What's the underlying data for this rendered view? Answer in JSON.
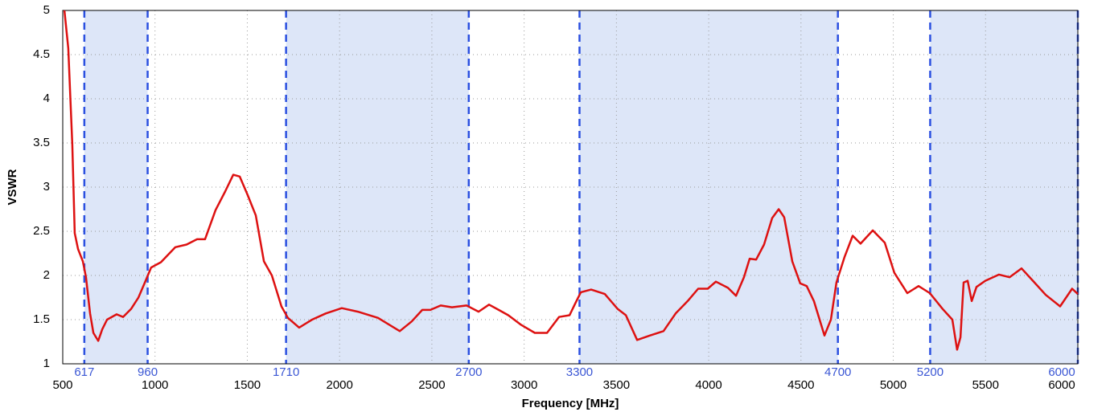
{
  "chart_data": {
    "type": "line",
    "xlabel": "Frequency [MHz]",
    "ylabel": "VSWR",
    "xlim": [
      500,
      6000
    ],
    "ylim": [
      1,
      5
    ],
    "xticks": [
      500,
      1000,
      1500,
      2000,
      2500,
      3000,
      3500,
      4000,
      4500,
      5000,
      5500,
      6000
    ],
    "yticks": [
      1,
      1.5,
      2,
      2.5,
      3,
      3.5,
      4,
      4.5,
      5
    ],
    "grid": true,
    "bands": [
      [
        617,
        960
      ],
      [
        1710,
        2700
      ],
      [
        3300,
        4700
      ],
      [
        5200,
        6000
      ]
    ],
    "band_color": "#dde6f8",
    "series": [
      {
        "color": "#dd1111",
        "x": [
          509,
          530,
          552,
          565,
          583,
          609,
          626,
          648,
          666,
          692,
          714,
          740,
          792,
          827,
          870,
          910,
          945,
          979,
          1032,
          1110,
          1171,
          1228,
          1271,
          1328,
          1380,
          1424,
          1459,
          1502,
          1546,
          1590,
          1633,
          1685,
          1720,
          1781,
          1851,
          1925,
          2012,
          2099,
          2208,
          2326,
          2391,
          2448,
          2492,
          2548,
          2609,
          2688,
          2753,
          2810,
          2862,
          2914,
          2984,
          3058,
          3124,
          3189,
          3246,
          3276,
          3307,
          3363,
          3437,
          3507,
          3551,
          3612,
          3681,
          3755,
          3821,
          3886,
          3943,
          3995,
          4039,
          4104,
          4148,
          4191,
          4222,
          4257,
          4300,
          4344,
          4379,
          4409,
          4453,
          4496,
          4531,
          4570,
          4627,
          4662,
          4692,
          4736,
          4780,
          4823,
          4889,
          4954,
          5006,
          5076,
          5137,
          5198,
          5268,
          5320,
          5346,
          5364,
          5381,
          5403,
          5425,
          5451,
          5499,
          5573,
          5630,
          5695,
          5752,
          5826,
          5904,
          5969,
          6000
        ],
        "values": [
          5.0,
          4.57,
          3.48,
          2.48,
          2.3,
          2.16,
          1.98,
          1.57,
          1.35,
          1.26,
          1.39,
          1.5,
          1.56,
          1.53,
          1.62,
          1.75,
          1.92,
          2.09,
          2.15,
          2.32,
          2.35,
          2.41,
          2.41,
          2.74,
          2.95,
          3.14,
          3.12,
          2.91,
          2.68,
          2.16,
          2.0,
          1.65,
          1.52,
          1.41,
          1.5,
          1.57,
          1.63,
          1.59,
          1.52,
          1.37,
          1.48,
          1.61,
          1.61,
          1.66,
          1.64,
          1.66,
          1.59,
          1.67,
          1.61,
          1.55,
          1.44,
          1.35,
          1.35,
          1.53,
          1.55,
          1.68,
          1.81,
          1.84,
          1.79,
          1.62,
          1.55,
          1.27,
          1.32,
          1.37,
          1.57,
          1.71,
          1.85,
          1.85,
          1.93,
          1.86,
          1.77,
          1.98,
          2.19,
          2.18,
          2.35,
          2.65,
          2.75,
          2.66,
          2.16,
          1.91,
          1.88,
          1.71,
          1.32,
          1.5,
          1.92,
          2.21,
          2.45,
          2.36,
          2.51,
          2.37,
          2.03,
          1.8,
          1.88,
          1.8,
          1.62,
          1.5,
          1.16,
          1.3,
          1.92,
          1.94,
          1.71,
          1.87,
          1.94,
          2.01,
          1.98,
          2.08,
          1.95,
          1.78,
          1.65,
          1.85,
          1.79
        ]
      }
    ]
  }
}
